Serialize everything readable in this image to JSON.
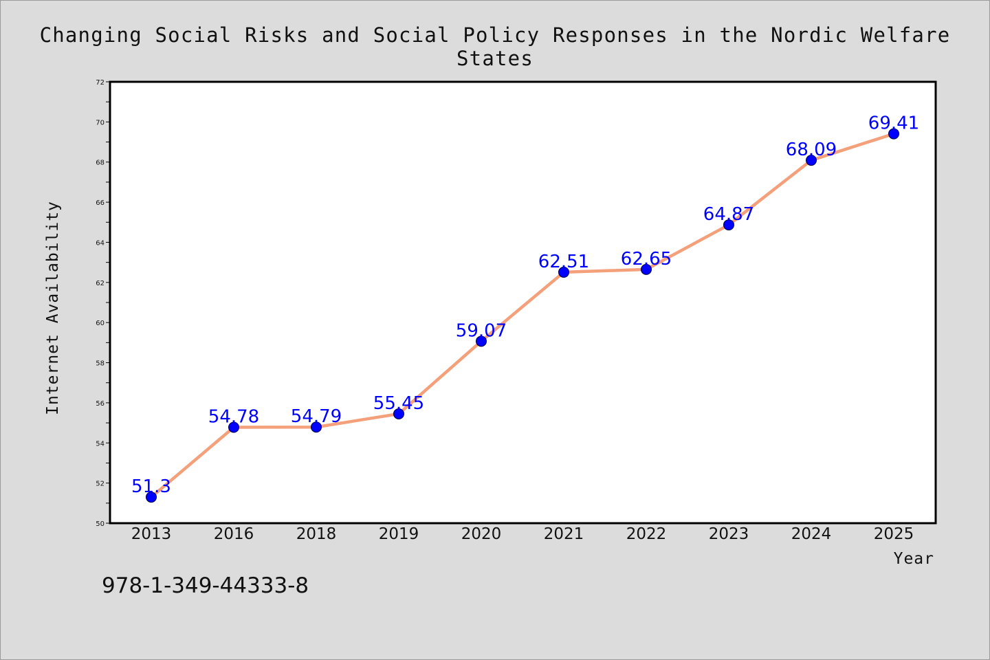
{
  "chart_data": {
    "type": "line",
    "title": "Changing Social Risks and Social Policy Responses in the Nordic Welfare States",
    "xlabel": "Year",
    "ylabel": "Internet Availability",
    "categories": [
      "2013",
      "2016",
      "2018",
      "2019",
      "2020",
      "2021",
      "2022",
      "2023",
      "2024",
      "2025"
    ],
    "series": [
      {
        "values": [
          51.3,
          54.78,
          54.79,
          55.45,
          59.07,
          62.51,
          62.65,
          64.87,
          68.09,
          69.41
        ],
        "labels": [
          "51.3",
          "54.78",
          "54.79",
          "55.45",
          "59.07",
          "62.51",
          "62.65",
          "64.87",
          "68.09",
          "69.41"
        ]
      }
    ],
    "ylim": [
      50,
      72
    ],
    "yticks": [
      "50",
      "52",
      "54",
      "56",
      "58",
      "60",
      "62",
      "64",
      "66",
      "68",
      "70",
      "72"
    ],
    "grid": false,
    "line_color": "#f4a07a",
    "marker_color": "#0000ff",
    "label_color": "#0000ff",
    "plot_background": "#ffffff",
    "figure_background": "#dcdcdc"
  },
  "footer": {
    "isbn": "978-1-349-44333-8"
  }
}
